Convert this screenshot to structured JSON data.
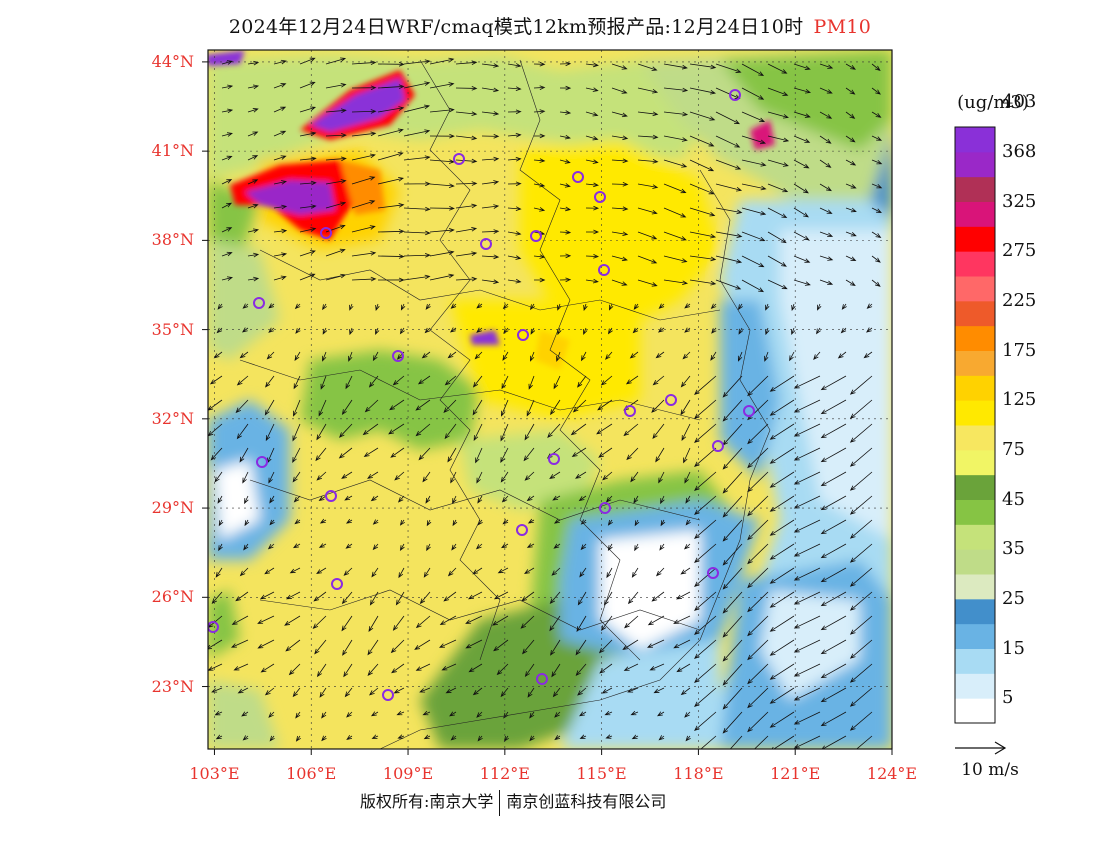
{
  "title": {
    "main": "2024年12月24日WRF/cmaq模式12km预报产品:12月24日10时",
    "highlight": "PM10"
  },
  "map": {
    "lat_labels": [
      "44°N",
      "41°N",
      "38°N",
      "35°N",
      "32°N",
      "29°N",
      "26°N",
      "23°N"
    ],
    "lat_values": [
      44,
      41,
      38,
      35,
      32,
      29,
      26,
      23
    ],
    "lon_labels": [
      "103°E",
      "106°E",
      "109°E",
      "112°E",
      "115°E",
      "118°E",
      "121°E",
      "124°E"
    ],
    "lon_values": [
      103,
      106,
      109,
      112,
      115,
      118,
      121,
      124
    ],
    "extent": {
      "lon_min": 102.8,
      "lon_max": 124,
      "lat_min": 20.9,
      "lat_max": 44.4
    }
  },
  "legend": {
    "unit": "(ug/m3)",
    "colors": [
      "#ffffff",
      "#d8eefa",
      "#a8dbf3",
      "#69b3e4",
      "#428fcb",
      "#dceac0",
      "#bfdc88",
      "#c5e27a",
      "#86c444",
      "#6aa33a",
      "#f1f565",
      "#f7e760",
      "#ffe900",
      "#ffd200",
      "#f8a930",
      "#ff8c00",
      "#ee5a2a",
      "#ff6868",
      "#ff3660",
      "#ff0000",
      "#d91479",
      "#b03056",
      "#9a28c8",
      "#8a30d8"
    ],
    "labels": [
      "5",
      "15",
      "25",
      "35",
      "45",
      "75",
      "125",
      "175",
      "225",
      "275",
      "325",
      "368",
      "403"
    ]
  },
  "scale": {
    "label": "10 m/s"
  },
  "footer": {
    "left": "版权所有:南京大学",
    "right": "南京创蓝科技有限公司"
  }
}
